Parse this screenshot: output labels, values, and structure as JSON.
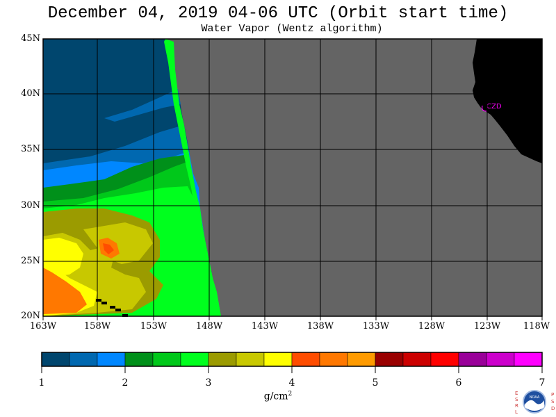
{
  "title": "December 04, 2019  04-06 UTC  (Orbit start time)",
  "subtitle": "Water Vapor (Wentz algorithm)",
  "map": {
    "lat_labels": [
      "45N",
      "40N",
      "35N",
      "30N",
      "25N",
      "20N"
    ],
    "lon_labels": [
      "163W",
      "158W",
      "153W",
      "148W",
      "143W",
      "138W",
      "133W",
      "128W",
      "123W",
      "118W"
    ],
    "station_label": "CZD",
    "station_color": "#ff00ff",
    "land_color": "#000000",
    "no_data_color": "#646464"
  },
  "colorbar": {
    "colors": [
      "#00466e",
      "#0068b0",
      "#0087ff",
      "#00901a",
      "#00c81a",
      "#00ff1e",
      "#9b9b00",
      "#c8c800",
      "#ffff00",
      "#ff4d00",
      "#ff7800",
      "#ff9b00",
      "#990000",
      "#cc0000",
      "#ff0000",
      "#990099",
      "#cc00cc",
      "#ff00ff"
    ],
    "tick_labels": [
      "1",
      "2",
      "3",
      "4",
      "5",
      "6",
      "7"
    ],
    "units": "g/cm",
    "units_sup": "2"
  },
  "logo": {
    "left_letters": [
      "E",
      "S",
      "R",
      "L"
    ],
    "right_letters": [
      "P",
      "S",
      "D"
    ],
    "name": "NOAA"
  }
}
